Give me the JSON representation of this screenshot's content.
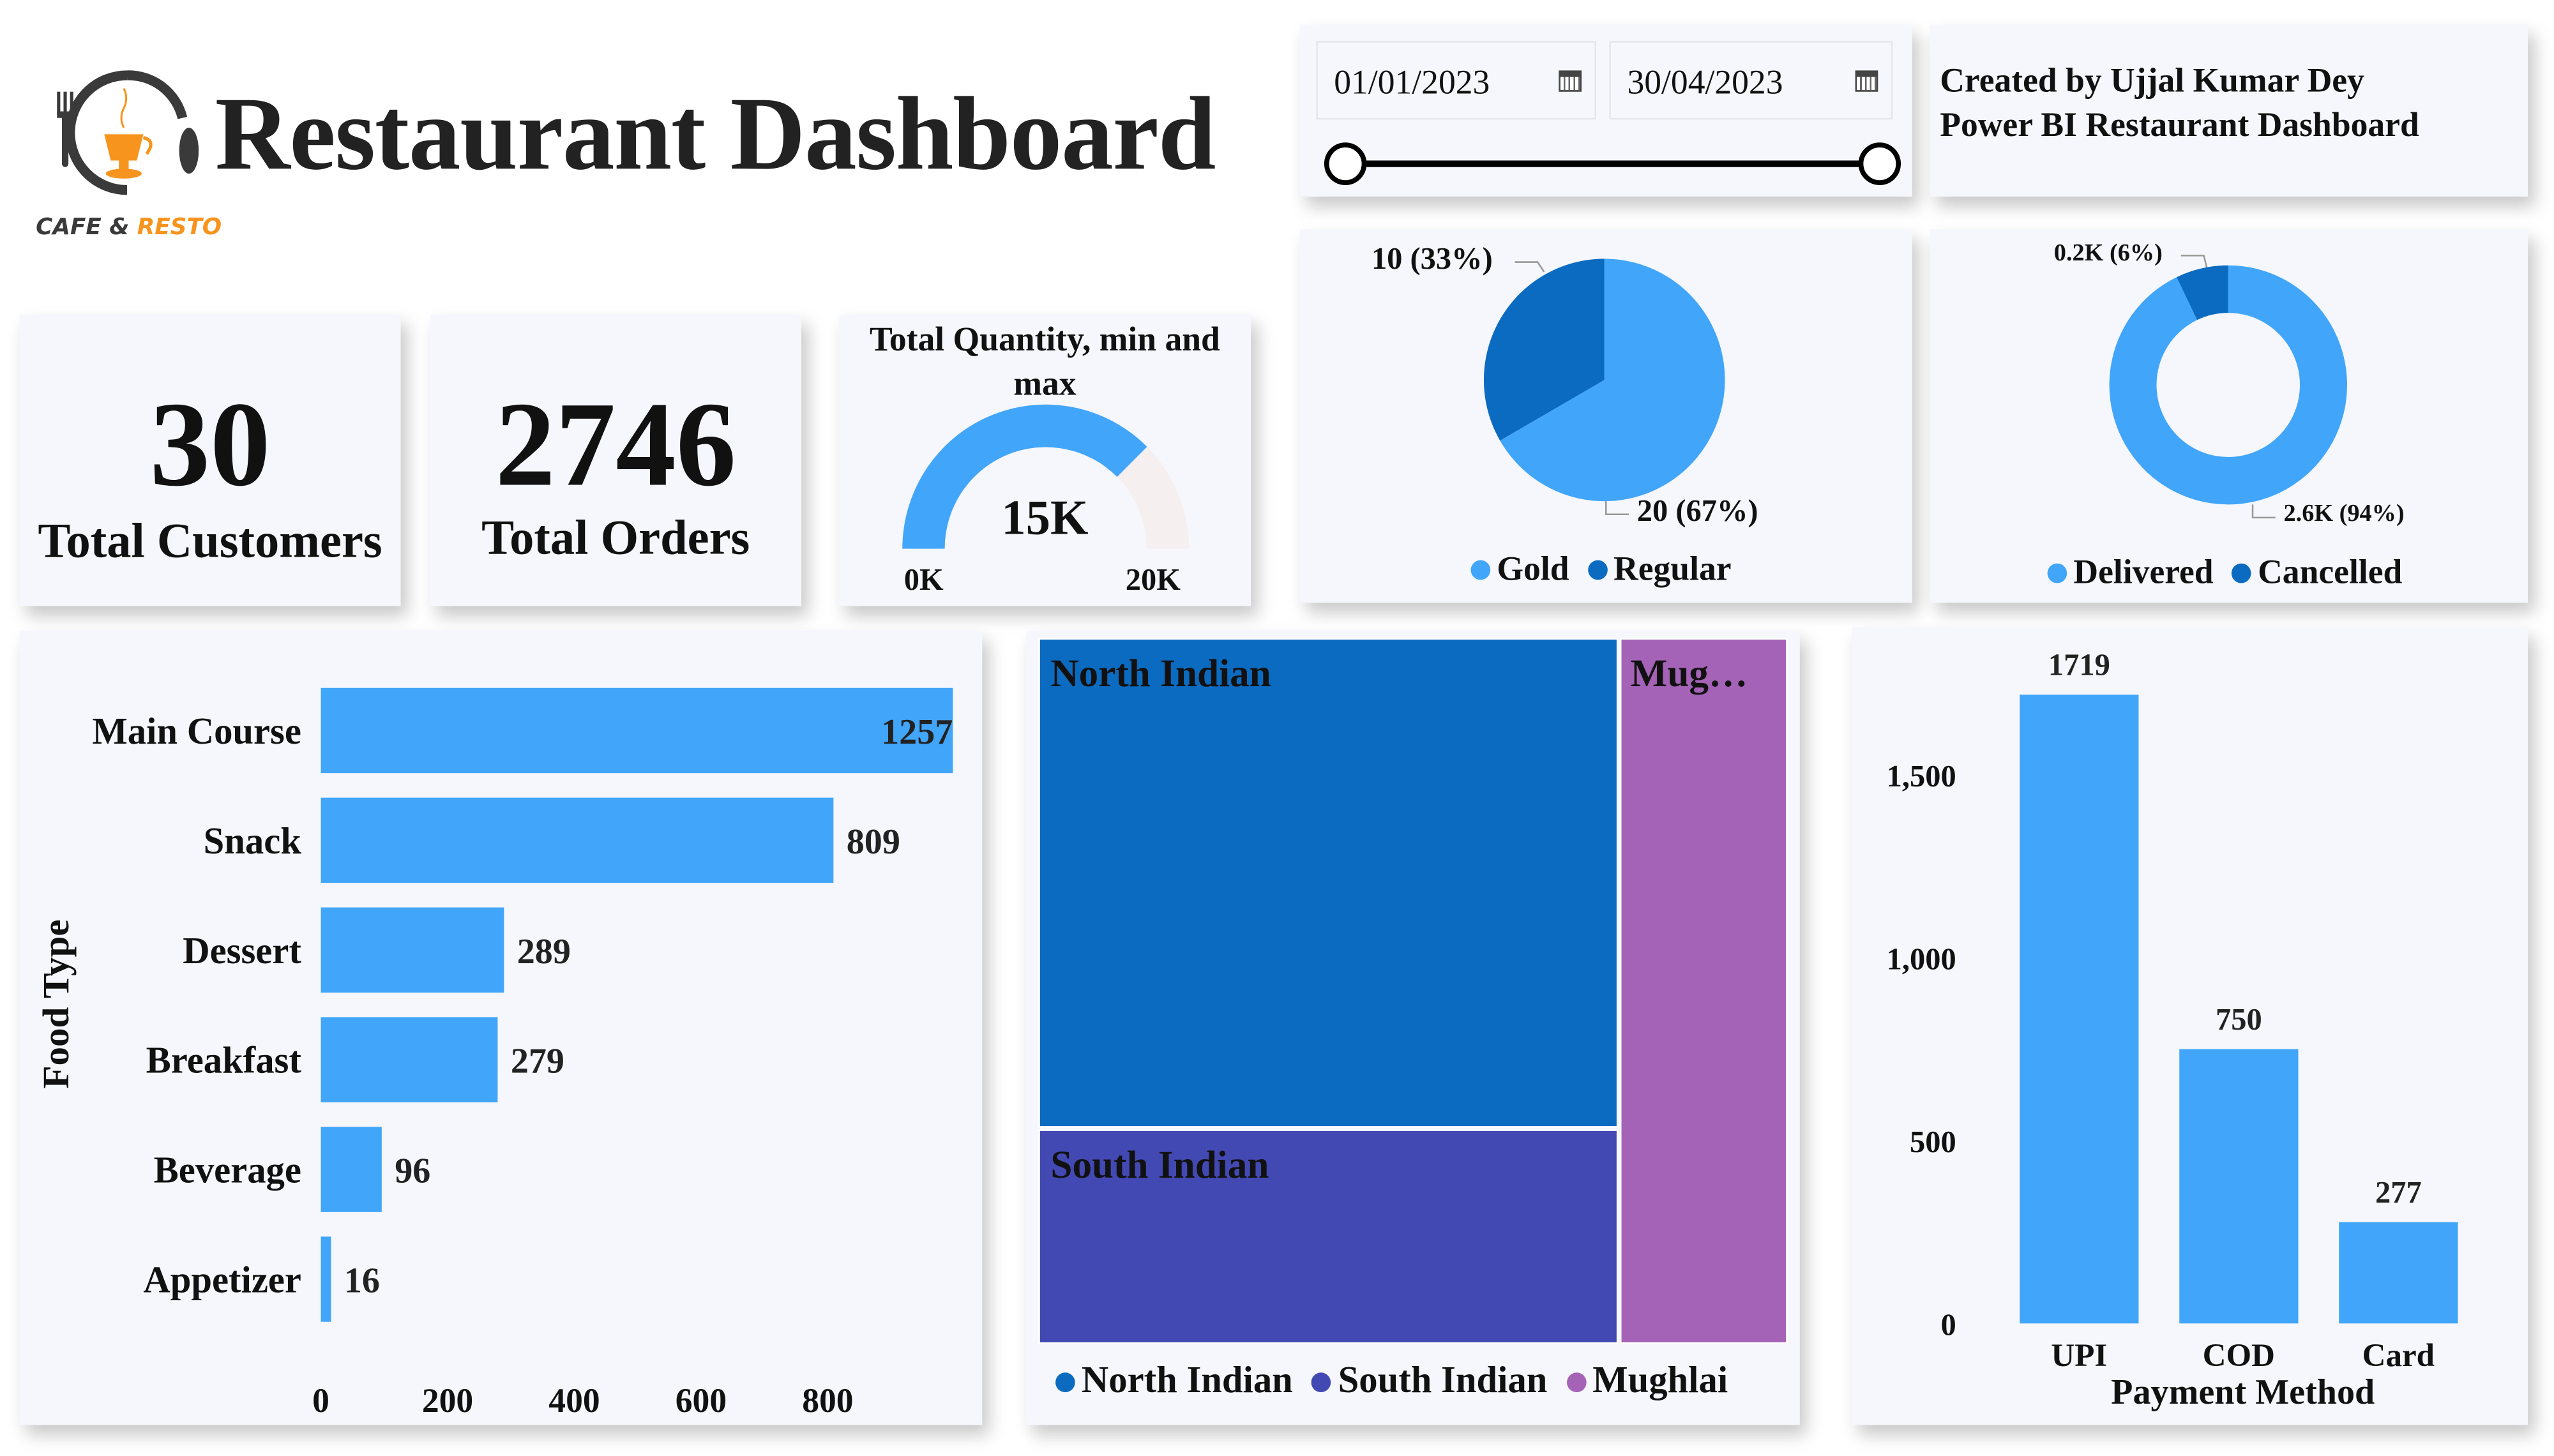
{
  "header": {
    "title": "Restaurant Dashboard",
    "tagline_part1": "CAFE &",
    "tagline_part2": "RESTO",
    "logo_colors": {
      "dark": "#3a3a3a",
      "accent": "#f7941d"
    }
  },
  "date_slicer": {
    "start_date": "01/01/2023",
    "end_date": "30/04/2023",
    "icon": "calendar-icon",
    "range_selected": [
      0,
      1
    ]
  },
  "credits": {
    "line1": "Created by Ujjal Kumar Dey",
    "line2": "Power BI Restaurant Dashboard"
  },
  "kpis": [
    {
      "value": "30",
      "label": "Total Customers"
    },
    {
      "value": "2746",
      "label": "Total Orders"
    }
  ],
  "gauge": {
    "title": "Total Quantity, min and max",
    "value_label": "15K",
    "min_label": "0K",
    "max_label": "20K",
    "value": 15000,
    "min": 0,
    "max": 20000,
    "fill_color": "#41a5fa",
    "track_color": "#f6eff0"
  },
  "colors": {
    "light_blue": "#41a5fa",
    "dark_blue": "#0b6bc0",
    "card_bg": "#f5f7fc"
  },
  "chart_data": [
    {
      "type": "pie",
      "slices": [
        {
          "name": "Gold",
          "value": 20,
          "label": "20 (67%)",
          "color": "#41a5fa"
        },
        {
          "name": "Regular",
          "value": 10,
          "label": "10 (33%)",
          "color": "#0b6bc0"
        }
      ],
      "legend": [
        "Gold",
        "Regular"
      ],
      "legend_position": "bottom"
    },
    {
      "type": "donut",
      "slices": [
        {
          "name": "Delivered",
          "value": 2.6,
          "label": "2.6K (94%)",
          "color": "#41a5fa"
        },
        {
          "name": "Cancelled",
          "value": 0.2,
          "label": "0.2K (6%)",
          "color": "#0b6bc0"
        }
      ],
      "legend": [
        "Delivered",
        "Cancelled"
      ],
      "legend_position": "bottom"
    },
    {
      "type": "bar",
      "orientation": "horizontal",
      "ylabel": "Food Type",
      "categories": [
        "Main Course",
        "Snack",
        "Dessert",
        "Breakfast",
        "Beverage",
        "Appetizer"
      ],
      "values": [
        1257,
        809,
        289,
        279,
        96,
        16
      ],
      "x_ticks": [
        "0",
        "200",
        "400",
        "600",
        "800"
      ],
      "tick_values": [
        0,
        200,
        400,
        600,
        800
      ],
      "color": "#41a5fa"
    },
    {
      "type": "treemap",
      "items": [
        {
          "name": "North Indian",
          "label": "North Indian",
          "color": "#0b6bc0"
        },
        {
          "name": "South Indian",
          "label": "South Indian",
          "color": "#4349b3"
        },
        {
          "name": "Mughlai",
          "label": "Mug…",
          "color": "#a463b6"
        }
      ],
      "legend": [
        "North Indian",
        "South Indian",
        "Mughlai"
      ],
      "legend_position": "bottom"
    },
    {
      "type": "bar",
      "orientation": "vertical",
      "xlabel": "Payment Method",
      "categories": [
        "UPI",
        "COD",
        "Card"
      ],
      "values": [
        1719,
        750,
        277
      ],
      "data_labels": [
        "1719",
        "750",
        "277"
      ],
      "y_ticks": [
        "0",
        "500",
        "1,000",
        "1,500"
      ],
      "tick_values": [
        0,
        500,
        1000,
        1500
      ],
      "color": "#41a5fa"
    }
  ]
}
